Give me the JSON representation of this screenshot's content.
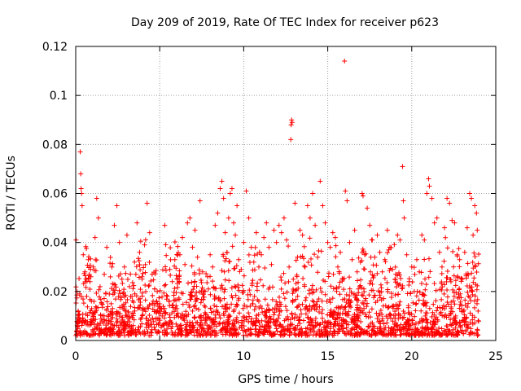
{
  "chart_data": {
    "type": "scatter",
    "title": "Day 209 of 2019, Rate Of TEC Index for receiver p623",
    "xlabel": "GPS time / hours",
    "ylabel": "ROTI / TECUs",
    "xlim": [
      0,
      25
    ],
    "ylim": [
      0,
      0.12
    ],
    "xticks": [
      0,
      5,
      10,
      15,
      20,
      25
    ],
    "xtick_labels": [
      "0",
      "5",
      "10",
      "15",
      "20",
      "25"
    ],
    "yticks": [
      0,
      0.02,
      0.04,
      0.06,
      0.08,
      0.1,
      0.12
    ],
    "ytick_labels": [
      "0",
      "0.02",
      "0.04",
      "0.06",
      "0.08",
      "0.1",
      "0.12"
    ],
    "grid": true,
    "marker": "+",
    "color": "#ff0000",
    "points": [
      [
        0.02,
        0.041
      ],
      [
        0.08,
        0.02
      ],
      [
        0.15,
        0.012
      ],
      [
        0.22,
        0.008
      ],
      [
        0.27,
        0.077
      ],
      [
        0.3,
        0.068
      ],
      [
        0.32,
        0.062
      ],
      [
        0.35,
        0.06
      ],
      [
        0.38,
        0.055
      ],
      [
        0.45,
        0.035
      ],
      [
        0.55,
        0.028
      ],
      [
        0.65,
        0.018
      ],
      [
        0.75,
        0.033
      ],
      [
        0.85,
        0.024
      ],
      [
        0.95,
        0.013
      ],
      [
        1.05,
        0.03
      ],
      [
        1.15,
        0.042
      ],
      [
        1.25,
        0.058
      ],
      [
        1.35,
        0.05
      ],
      [
        1.45,
        0.022
      ],
      [
        1.55,
        0.015
      ],
      [
        1.7,
        0.027
      ],
      [
        1.85,
        0.038
      ],
      [
        2.0,
        0.019
      ],
      [
        2.15,
        0.03
      ],
      [
        2.3,
        0.047
      ],
      [
        2.45,
        0.055
      ],
      [
        2.6,
        0.04
      ],
      [
        2.75,
        0.025
      ],
      [
        2.9,
        0.03
      ],
      [
        3.05,
        0.043
      ],
      [
        3.2,
        0.022
      ],
      [
        3.35,
        0.018
      ],
      [
        3.5,
        0.032
      ],
      [
        3.65,
        0.048
      ],
      [
        3.8,
        0.036
      ],
      [
        3.95,
        0.026
      ],
      [
        4.1,
        0.039
      ],
      [
        4.25,
        0.056
      ],
      [
        4.4,
        0.044
      ],
      [
        4.55,
        0.027
      ],
      [
        4.7,
        0.015
      ],
      [
        4.85,
        0.02
      ],
      [
        5.0,
        0.012
      ],
      [
        5.15,
        0.01
      ],
      [
        5.3,
        0.047
      ],
      [
        5.45,
        0.018
      ],
      [
        5.6,
        0.029
      ],
      [
        5.75,
        0.024
      ],
      [
        5.9,
        0.033
      ],
      [
        6.05,
        0.025
      ],
      [
        6.2,
        0.035
      ],
      [
        6.35,
        0.042
      ],
      [
        6.5,
        0.031
      ],
      [
        6.65,
        0.048
      ],
      [
        6.8,
        0.05
      ],
      [
        6.95,
        0.038
      ],
      [
        7.1,
        0.045
      ],
      [
        7.25,
        0.034
      ],
      [
        7.4,
        0.057
      ],
      [
        7.55,
        0.028
      ],
      [
        7.7,
        0.02
      ],
      [
        7.85,
        0.026
      ],
      [
        8.0,
        0.035
      ],
      [
        8.15,
        0.03
      ],
      [
        8.3,
        0.047
      ],
      [
        8.45,
        0.052
      ],
      [
        8.6,
        0.062
      ],
      [
        8.7,
        0.065
      ],
      [
        8.8,
        0.058
      ],
      [
        8.9,
        0.044
      ],
      [
        9.0,
        0.036
      ],
      [
        9.1,
        0.05
      ],
      [
        9.2,
        0.06
      ],
      [
        9.3,
        0.062
      ],
      [
        9.4,
        0.048
      ],
      [
        9.5,
        0.043
      ],
      [
        9.6,
        0.055
      ],
      [
        9.7,
        0.033
      ],
      [
        9.85,
        0.029
      ],
      [
        10.0,
        0.04
      ],
      [
        10.15,
        0.061
      ],
      [
        10.3,
        0.05
      ],
      [
        10.45,
        0.038
      ],
      [
        10.6,
        0.032
      ],
      [
        10.75,
        0.044
      ],
      [
        10.9,
        0.03
      ],
      [
        11.05,
        0.035
      ],
      [
        11.2,
        0.042
      ],
      [
        11.35,
        0.048
      ],
      [
        11.5,
        0.038
      ],
      [
        11.65,
        0.031
      ],
      [
        11.8,
        0.045
      ],
      [
        11.95,
        0.04
      ],
      [
        12.1,
        0.047
      ],
      [
        12.25,
        0.044
      ],
      [
        12.4,
        0.05
      ],
      [
        12.55,
        0.041
      ],
      [
        12.7,
        0.03
      ],
      [
        12.8,
        0.082
      ],
      [
        12.82,
        0.088
      ],
      [
        12.85,
        0.09
      ],
      [
        12.88,
        0.089
      ],
      [
        12.95,
        0.025
      ],
      [
        13.05,
        0.056
      ],
      [
        13.2,
        0.034
      ],
      [
        13.35,
        0.045
      ],
      [
        13.5,
        0.043
      ],
      [
        13.65,
        0.03
      ],
      [
        13.8,
        0.055
      ],
      [
        13.95,
        0.05
      ],
      [
        14.1,
        0.06
      ],
      [
        14.25,
        0.047
      ],
      [
        14.4,
        0.034
      ],
      [
        14.55,
        0.065
      ],
      [
        14.7,
        0.055
      ],
      [
        14.85,
        0.048
      ],
      [
        15.0,
        0.04
      ],
      [
        15.15,
        0.038
      ],
      [
        15.3,
        0.044
      ],
      [
        15.45,
        0.042
      ],
      [
        15.6,
        0.03
      ],
      [
        15.75,
        0.036
      ],
      [
        15.9,
        0.025
      ],
      [
        16.0,
        0.114
      ],
      [
        16.05,
        0.061
      ],
      [
        16.15,
        0.057
      ],
      [
        16.3,
        0.04
      ],
      [
        16.45,
        0.033
      ],
      [
        16.6,
        0.045
      ],
      [
        16.75,
        0.028
      ],
      [
        16.9,
        0.022
      ],
      [
        17.05,
        0.06
      ],
      [
        17.1,
        0.059
      ],
      [
        17.2,
        0.035
      ],
      [
        17.35,
        0.054
      ],
      [
        17.5,
        0.047
      ],
      [
        17.65,
        0.041
      ],
      [
        17.8,
        0.034
      ],
      [
        17.95,
        0.043
      ],
      [
        18.1,
        0.036
      ],
      [
        18.25,
        0.028
      ],
      [
        18.4,
        0.033
      ],
      [
        18.55,
        0.045
      ],
      [
        18.7,
        0.038
      ],
      [
        18.85,
        0.029
      ],
      [
        19.0,
        0.025
      ],
      [
        19.15,
        0.043
      ],
      [
        19.3,
        0.041
      ],
      [
        19.45,
        0.071
      ],
      [
        19.5,
        0.057
      ],
      [
        19.55,
        0.05
      ],
      [
        19.7,
        0.035
      ],
      [
        19.85,
        0.024
      ],
      [
        20.0,
        0.03
      ],
      [
        20.15,
        0.02
      ],
      [
        20.3,
        0.033
      ],
      [
        20.45,
        0.028
      ],
      [
        20.6,
        0.043
      ],
      [
        20.75,
        0.041
      ],
      [
        20.9,
        0.06
      ],
      [
        21.0,
        0.066
      ],
      [
        21.05,
        0.063
      ],
      [
        21.2,
        0.058
      ],
      [
        21.35,
        0.048
      ],
      [
        21.5,
        0.05
      ],
      [
        21.65,
        0.036
      ],
      [
        21.8,
        0.03
      ],
      [
        21.95,
        0.046
      ],
      [
        22.1,
        0.058
      ],
      [
        22.25,
        0.056
      ],
      [
        22.4,
        0.049
      ],
      [
        22.55,
        0.048
      ],
      [
        22.7,
        0.035
      ],
      [
        22.85,
        0.033
      ],
      [
        23.0,
        0.025
      ],
      [
        23.15,
        0.036
      ],
      [
        23.3,
        0.046
      ],
      [
        23.45,
        0.06
      ],
      [
        23.55,
        0.058
      ],
      [
        23.65,
        0.043
      ],
      [
        23.75,
        0.055
      ],
      [
        23.85,
        0.052
      ],
      [
        23.9,
        0.045
      ]
    ]
  }
}
